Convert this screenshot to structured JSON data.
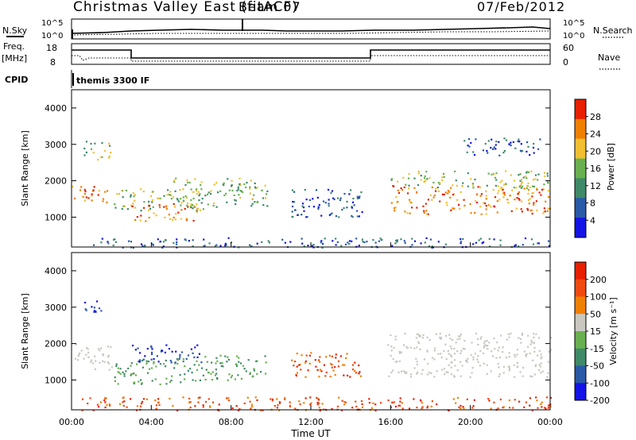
{
  "header": {
    "station": "Christmas Valley East (fitACF)",
    "beam": "Beam 07",
    "date": "07/Feb/2012"
  },
  "status": {
    "nsky_label": "N.Sky",
    "nsearch_label": "N.Search",
    "noise_left_ticks": [
      "10^5",
      "10^0"
    ],
    "noise_right_ticks": [
      "10^5",
      "10^0"
    ],
    "freq_label_1": "Freq.",
    "freq_label_2": "[MHz]",
    "freq_ticks": [
      "18",
      "8"
    ],
    "nave_label": "Nave",
    "nave_ticks": [
      "60",
      "0"
    ],
    "cpid_label": "CPID",
    "cpid_value": "themis 3300 IF",
    "freq_segments_mhz": [
      {
        "from": "00:00",
        "to": "02:54",
        "value": 15.5
      },
      {
        "from": "02:54",
        "to": "14:54",
        "value": 11.0
      },
      {
        "from": "14:54",
        "to": "24:00",
        "value": 15.5
      }
    ]
  },
  "chart_data": [
    {
      "type": "heatmap",
      "name": "power",
      "ylabel": "Slant Range [km]",
      "yticks": [
        "1000",
        "2000",
        "3000",
        "4000"
      ],
      "ylim": [
        180,
        4500
      ],
      "colorbar_label": "Power [dB]",
      "colorbar_ticks": [
        "4",
        "8",
        "12",
        "16",
        "20",
        "24",
        "28"
      ],
      "colorbar_range": [
        0,
        32
      ],
      "colors": [
        "#1414e6",
        "#2a5aa8",
        "#3f8a68",
        "#69b050",
        "#f0c030",
        "#f08000",
        "#e82000"
      ],
      "bands": [
        {
          "t0": 0.0,
          "t1": 1.9,
          "r0": 1400,
          "r1": 1900,
          "level": "high"
        },
        {
          "t0": 0.6,
          "t1": 2.0,
          "r0": 2600,
          "r1": 3100,
          "level": "mid"
        },
        {
          "t0": 2.0,
          "t1": 6.6,
          "r0": 1200,
          "r1": 1800,
          "level": "mid"
        },
        {
          "t0": 3.0,
          "t1": 6.4,
          "r0": 900,
          "r1": 1400,
          "level": "high"
        },
        {
          "t0": 5.0,
          "t1": 9.8,
          "r0": 1300,
          "r1": 2100,
          "level": "mid"
        },
        {
          "t0": 11.0,
          "t1": 14.6,
          "r0": 1000,
          "r1": 1800,
          "level": "low"
        },
        {
          "t0": 16.0,
          "t1": 24.0,
          "r0": 1100,
          "r1": 1900,
          "level": "high"
        },
        {
          "t0": 16.0,
          "t1": 24.0,
          "r0": 1800,
          "r1": 2300,
          "level": "mid"
        },
        {
          "t0": 19.5,
          "t1": 23.5,
          "r0": 2700,
          "r1": 3200,
          "level": "low"
        },
        {
          "t0": 1.0,
          "t1": 24.0,
          "r0": 180,
          "r1": 450,
          "level": "low"
        }
      ]
    },
    {
      "type": "heatmap",
      "name": "velocity",
      "ylabel": "Slant Range [km]",
      "xlabel": "Time UT",
      "xticks": [
        "00:00",
        "04:00",
        "08:00",
        "12:00",
        "16:00",
        "20:00",
        "00:00"
      ],
      "yticks": [
        "1000",
        "2000",
        "3000",
        "4000"
      ],
      "ylim": [
        180,
        4500
      ],
      "colorbar_label": "Velocity [m s⁻¹]",
      "colorbar_ticks": [
        "200",
        "100",
        "50",
        "15",
        "-15",
        "-50",
        "-100",
        "-200"
      ],
      "colors": [
        "#1414e6",
        "#2a5aa8",
        "#3f8a68",
        "#69b050",
        "#c8c8c0",
        "#f08000",
        "#f04a10",
        "#e82000"
      ],
      "bands": [
        {
          "t0": 0.0,
          "t1": 2.0,
          "r0": 1300,
          "r1": 2000,
          "level": "low"
        },
        {
          "t0": 0.6,
          "t1": 1.6,
          "r0": 2700,
          "r1": 3200,
          "level": "high"
        },
        {
          "t0": 2.0,
          "t1": 5.5,
          "r0": 900,
          "r1": 1600,
          "level": "mid"
        },
        {
          "t0": 3.0,
          "t1": 6.5,
          "r0": 1500,
          "r1": 2000,
          "level": "high"
        },
        {
          "t0": 5.5,
          "t1": 9.8,
          "r0": 1000,
          "r1": 1700,
          "level": "mid"
        },
        {
          "t0": 11.0,
          "t1": 14.6,
          "r0": 1100,
          "r1": 1800,
          "level": "neg"
        },
        {
          "t0": 15.8,
          "t1": 24.0,
          "r0": 1100,
          "r1": 2300,
          "level": "low"
        },
        {
          "t0": 0.5,
          "t1": 24.0,
          "r0": 180,
          "r1": 550,
          "level": "neg"
        }
      ]
    }
  ]
}
